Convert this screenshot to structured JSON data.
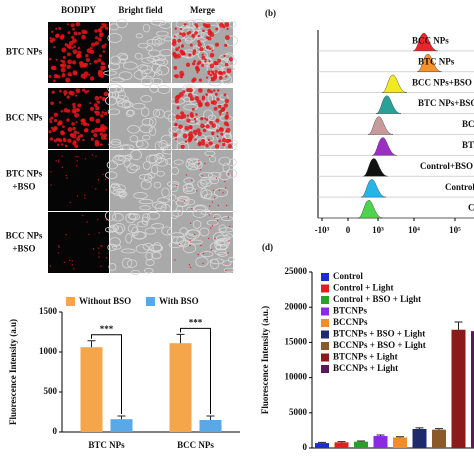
{
  "panel_a": {
    "columns": [
      "BODIPY",
      "Bright field",
      "Merge"
    ],
    "rows": [
      "BTC NPs",
      "BCC NPs",
      "BTC NPs",
      "BCC NPs"
    ],
    "row_suffix": [
      "+BSO",
      "+BSO"
    ]
  },
  "panel_b": {
    "label": "(b)",
    "rows": [
      "BCC NPs",
      "BTC NPs",
      "BCC NPs+BSO",
      "BTC NPs+BSO",
      "BCC",
      "BTC",
      "Control+BSO",
      "Control",
      "C"
    ],
    "colors": [
      "#e8252a",
      "#f7922d",
      "#f2ea20",
      "#2aa198",
      "#c99a9a",
      "#9b2fc4",
      "#111111",
      "#27b4e8",
      "#4dd34d"
    ],
    "ticks": [
      "-10³",
      "0",
      "10³",
      "10⁴",
      "10⁵"
    ]
  },
  "panel_d": {
    "label": "(d)"
  },
  "chart_data": [
    {
      "type": "bar",
      "ylabel": "Fluorescence Intensity (a.u)",
      "categories": [
        "BTC NPs",
        "BCC NPs"
      ],
      "series": [
        {
          "name": "Without BSO",
          "color": "#f5a54a",
          "values": [
            1060,
            1110
          ],
          "errors": [
            80,
            110
          ]
        },
        {
          "name": "With BSO",
          "color": "#5aa9e6",
          "values": [
            160,
            150
          ],
          "errors": [
            40,
            50
          ]
        }
      ],
      "annotations": [
        "***",
        "***"
      ],
      "ylim": [
        0,
        1500
      ],
      "yticks": [
        0,
        500,
        1000,
        1500
      ]
    },
    {
      "type": "bar",
      "ylabel": "Fluorescence Intensity (a.u.)",
      "categories": [
        "Control",
        "Control + Light",
        "Control + BSO + Light",
        "BTCNPs",
        "BCCNPs",
        "BTCNPs + BSO + Light",
        "BCCNPs + BSO + Light",
        "BTCNPs + Light",
        "BCCNPs + Light"
      ],
      "colors": [
        "#1d2bd6",
        "#e02020",
        "#2aa02a",
        "#8a2be2",
        "#f28c28",
        "#1f2a6b",
        "#8b5a2b",
        "#8b1a1a",
        "#5a1a5a"
      ],
      "values": [
        700,
        800,
        900,
        1700,
        1500,
        2700,
        2600,
        16800,
        16600
      ],
      "errors": [
        100,
        100,
        100,
        150,
        100,
        150,
        150,
        1100,
        1000
      ],
      "ylim": [
        0,
        25000
      ],
      "yticks": [
        0,
        5000,
        10000,
        15000,
        20000,
        25000
      ]
    }
  ]
}
